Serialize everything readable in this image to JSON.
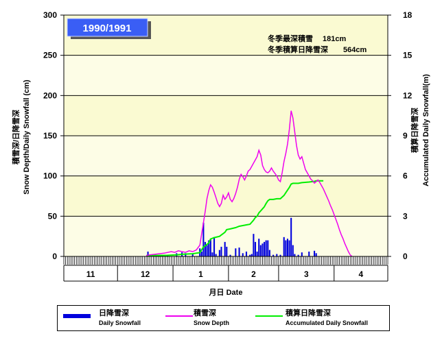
{
  "badge": "1990/1991",
  "stats": {
    "line1_label": "冬季最深積雪",
    "line1_value": "181cm",
    "line2_label": "冬季積算日降雪深",
    "line2_value": "564cm"
  },
  "left_axis_title": {
    "jp": "積雪深/日降雪深",
    "en": "Snow Depth/Daily Snowfall (cm)"
  },
  "right_axis_title": {
    "jp": "積算日降雪深",
    "en": "Accumulated Daily Snowfall(m)"
  },
  "x_axis_title": "月日 Date",
  "legend": [
    {
      "jp": "日降雪深",
      "en": "Daily Snowfall",
      "color": "#0000dd"
    },
    {
      "jp": "積雪深",
      "en": "Snow Depth",
      "color": "#ee00ee"
    },
    {
      "jp": "積算日降雪深",
      "en": "Accumulated Daily Snowfall",
      "color": "#00ee00"
    }
  ],
  "chart_data": {
    "type": "bar+line",
    "left_ticks": [
      "0",
      "50",
      "100",
      "150",
      "200",
      "250",
      "300"
    ],
    "right_ticks": [
      "0",
      "3",
      "6",
      "9",
      "12",
      "15",
      "18"
    ],
    "ylim_left": [
      0,
      300
    ],
    "ylim_right": [
      0,
      18
    ],
    "months": [
      "11",
      "12",
      "1",
      "2",
      "3",
      "4"
    ],
    "month_days": [
      30,
      31,
      31,
      28,
      31,
      30
    ],
    "grid": true,
    "background_bands": [
      "#fdfde6",
      "#fafad2"
    ],
    "daily_snowfall": [
      [
        47,
        6
      ],
      [
        58,
        2
      ],
      [
        63,
        4
      ],
      [
        66,
        5
      ],
      [
        68,
        4
      ],
      [
        72,
        3
      ],
      [
        76,
        10
      ],
      [
        77,
        6
      ],
      [
        78,
        42
      ],
      [
        79,
        18
      ],
      [
        80,
        14
      ],
      [
        81,
        20
      ],
      [
        82,
        22
      ],
      [
        83,
        5
      ],
      [
        84,
        24
      ],
      [
        85,
        3
      ],
      [
        87,
        8
      ],
      [
        88,
        12
      ],
      [
        90,
        18
      ],
      [
        91,
        12
      ],
      [
        93,
        2
      ],
      [
        96,
        10
      ],
      [
        98,
        11
      ],
      [
        100,
        4
      ],
      [
        102,
        6
      ],
      [
        104,
        2
      ],
      [
        105,
        3
      ],
      [
        106,
        28
      ],
      [
        107,
        18
      ],
      [
        108,
        6
      ],
      [
        109,
        22
      ],
      [
        110,
        14
      ],
      [
        111,
        16
      ],
      [
        112,
        18
      ],
      [
        113,
        20
      ],
      [
        114,
        20
      ],
      [
        115,
        8
      ],
      [
        117,
        2
      ],
      [
        119,
        3
      ],
      [
        121,
        2
      ],
      [
        123,
        24
      ],
      [
        124,
        20
      ],
      [
        125,
        22
      ],
      [
        126,
        20
      ],
      [
        127,
        48
      ],
      [
        128,
        14
      ],
      [
        129,
        3
      ],
      [
        131,
        2
      ],
      [
        133,
        5
      ],
      [
        137,
        6
      ],
      [
        140,
        7
      ],
      [
        141,
        4
      ]
    ],
    "snow_depth": [
      [
        46,
        1
      ],
      [
        48,
        2
      ],
      [
        52,
        3
      ],
      [
        56,
        4
      ],
      [
        60,
        6
      ],
      [
        62,
        5
      ],
      [
        64,
        7
      ],
      [
        66,
        6
      ],
      [
        68,
        5
      ],
      [
        70,
        7
      ],
      [
        72,
        6
      ],
      [
        74,
        8
      ],
      [
        76,
        14
      ],
      [
        78,
        42
      ],
      [
        79,
        56
      ],
      [
        80,
        72
      ],
      [
        81,
        82
      ],
      [
        82,
        89
      ],
      [
        83,
        86
      ],
      [
        84,
        80
      ],
      [
        85,
        73
      ],
      [
        86,
        66
      ],
      [
        87,
        62
      ],
      [
        88,
        66
      ],
      [
        89,
        76
      ],
      [
        90,
        71
      ],
      [
        91,
        74
      ],
      [
        92,
        79
      ],
      [
        93,
        71
      ],
      [
        94,
        68
      ],
      [
        95,
        72
      ],
      [
        96,
        78
      ],
      [
        97,
        86
      ],
      [
        98,
        96
      ],
      [
        99,
        102
      ],
      [
        100,
        99
      ],
      [
        101,
        95
      ],
      [
        102,
        100
      ],
      [
        103,
        106
      ],
      [
        104,
        108
      ],
      [
        105,
        112
      ],
      [
        106,
        116
      ],
      [
        107,
        120
      ],
      [
        108,
        124
      ],
      [
        109,
        132
      ],
      [
        110,
        126
      ],
      [
        111,
        113
      ],
      [
        112,
        108
      ],
      [
        113,
        105
      ],
      [
        114,
        104
      ],
      [
        115,
        106
      ],
      [
        116,
        110
      ],
      [
        117,
        106
      ],
      [
        118,
        103
      ],
      [
        119,
        100
      ],
      [
        120,
        95
      ],
      [
        121,
        93
      ],
      [
        122,
        104
      ],
      [
        123,
        118
      ],
      [
        124,
        128
      ],
      [
        125,
        140
      ],
      [
        126,
        158
      ],
      [
        127,
        181
      ],
      [
        128,
        172
      ],
      [
        129,
        155
      ],
      [
        130,
        138
      ],
      [
        131,
        126
      ],
      [
        132,
        121
      ],
      [
        133,
        124
      ],
      [
        134,
        116
      ],
      [
        135,
        108
      ],
      [
        136,
        104
      ],
      [
        137,
        100
      ],
      [
        138,
        96
      ],
      [
        139,
        94
      ],
      [
        140,
        91
      ],
      [
        141,
        93
      ],
      [
        142,
        95
      ],
      [
        143,
        92
      ],
      [
        144,
        88
      ],
      [
        145,
        84
      ],
      [
        146,
        79
      ],
      [
        147,
        74
      ],
      [
        148,
        69
      ],
      [
        149,
        63
      ],
      [
        150,
        58
      ],
      [
        151,
        52
      ],
      [
        152,
        46
      ],
      [
        153,
        40
      ],
      [
        154,
        33
      ],
      [
        155,
        27
      ],
      [
        156,
        22
      ],
      [
        157,
        16
      ],
      [
        158,
        11
      ],
      [
        159,
        6
      ],
      [
        160,
        2
      ],
      [
        161,
        0
      ]
    ],
    "accumulated_m": [
      [
        46,
        0.06
      ],
      [
        58,
        0.08
      ],
      [
        63,
        0.12
      ],
      [
        66,
        0.16
      ],
      [
        72,
        0.2
      ],
      [
        76,
        0.28
      ],
      [
        78,
        0.7
      ],
      [
        80,
        0.9
      ],
      [
        81,
        1.0
      ],
      [
        82,
        1.3
      ],
      [
        84,
        1.4
      ],
      [
        87,
        1.5
      ],
      [
        88,
        1.6
      ],
      [
        90,
        1.8
      ],
      [
        91,
        2.0
      ],
      [
        93,
        2.05
      ],
      [
        96,
        2.15
      ],
      [
        98,
        2.25
      ],
      [
        100,
        2.3
      ],
      [
        102,
        2.35
      ],
      [
        104,
        2.4
      ],
      [
        106,
        2.7
      ],
      [
        107,
        2.9
      ],
      [
        108,
        3.0
      ],
      [
        109,
        3.25
      ],
      [
        110,
        3.4
      ],
      [
        111,
        3.55
      ],
      [
        112,
        3.7
      ],
      [
        113,
        3.95
      ],
      [
        114,
        4.15
      ],
      [
        115,
        4.25
      ],
      [
        117,
        4.25
      ],
      [
        119,
        4.3
      ],
      [
        121,
        4.3
      ],
      [
        123,
        4.55
      ],
      [
        124,
        4.75
      ],
      [
        125,
        4.95
      ],
      [
        126,
        5.15
      ],
      [
        127,
        5.4
      ],
      [
        128,
        5.45
      ],
      [
        131,
        5.45
      ],
      [
        133,
        5.5
      ],
      [
        137,
        5.55
      ],
      [
        140,
        5.6
      ],
      [
        141,
        5.64
      ],
      [
        145,
        5.64
      ]
    ]
  }
}
